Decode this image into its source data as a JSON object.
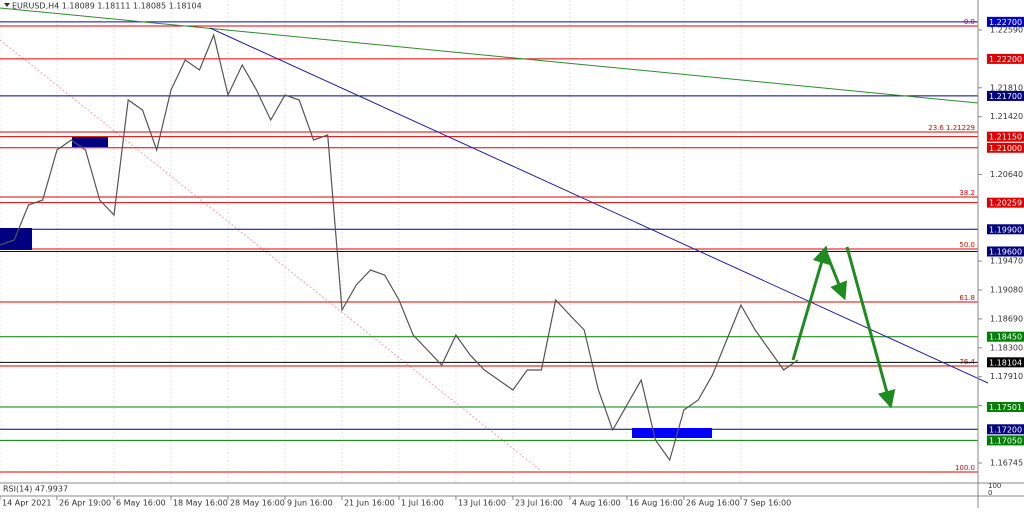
{
  "chart_data": {
    "type": "line",
    "title": "EURUSD,H4 1.18089 1.18111 1.18085 1.18104",
    "ylim": [
      1.16475,
      1.22995
    ],
    "yticks": [
      {
        "value": 1.2259,
        "label": "1.22590"
      },
      {
        "value": 1.2181,
        "label": "1.21810"
      },
      {
        "value": 1.2142,
        "label": "1.21420"
      },
      {
        "value": 1.2064,
        "label": "1.20640"
      },
      {
        "value": 1.1947,
        "label": "1.19470"
      },
      {
        "value": 1.1908,
        "label": "1.19080"
      },
      {
        "value": 1.1869,
        "label": "1.18690"
      },
      {
        "value": 1.183,
        "label": "1.18300"
      },
      {
        "value": 1.1791,
        "label": "1.17910"
      },
      {
        "value": 1.1752,
        "label": "1.17520"
      },
      {
        "value": 1.16745,
        "label": "1.16745"
      }
    ],
    "xlim": [
      0,
      17.16
    ],
    "xticks": [
      {
        "value": 0,
        "label": "14 Apr 2021"
      },
      {
        "value": 1,
        "label": "26 Apr 19:00"
      },
      {
        "value": 2,
        "label": "6 May 16:00"
      },
      {
        "value": 3,
        "label": "18 May 16:00"
      },
      {
        "value": 4,
        "label": "28 May 16:00"
      },
      {
        "value": 5,
        "label": "9 Jun 16:00"
      },
      {
        "value": 6,
        "label": "21 Jun 16:00"
      },
      {
        "value": 7,
        "label": "1 Jul 16:00"
      },
      {
        "value": 8,
        "label": "13 Jul 16:00"
      },
      {
        "value": 9,
        "label": "23 Jul 16:00"
      },
      {
        "value": 10,
        "label": "4 Aug 16:00"
      },
      {
        "value": 11,
        "label": "16 Aug 16:00"
      },
      {
        "value": 12,
        "label": "26 Aug 16:00"
      },
      {
        "value": 13,
        "label": "7 Sep 16:00"
      }
    ],
    "grid": true,
    "series": [
      {
        "color": "#555555",
        "x": [
          0,
          0.25,
          0.5,
          0.75,
          1,
          1.25,
          1.5,
          1.75,
          2,
          2.25,
          2.5,
          2.75,
          3,
          3.25,
          3.5,
          3.75,
          4,
          4.25,
          4.5,
          4.75,
          5,
          5.25,
          5.5,
          5.75,
          6,
          6.25,
          6.5,
          6.75,
          7,
          7.25,
          7.5,
          7.75,
          8,
          8.25,
          8.5,
          8.75,
          9,
          9.25,
          9.5,
          9.75,
          10,
          10.25,
          10.5,
          10.75,
          11,
          11.25,
          11.5,
          11.75,
          12,
          12.25,
          12.5,
          12.75,
          13,
          13.25,
          13.5,
          13.75,
          14
        ],
        "values": [
          1.19688,
          1.19755,
          1.20228,
          1.20295,
          1.2097,
          1.21105,
          1.2097,
          1.20295,
          1.20093,
          1.21645,
          1.2151,
          1.2097,
          1.2178,
          1.22185,
          1.2205,
          1.22522,
          1.21712,
          1.22117,
          1.2178,
          1.21375,
          1.21712,
          1.21645,
          1.21105,
          1.21172,
          1.1881,
          1.19147,
          1.1935,
          1.19282,
          1.18945,
          1.18472,
          1.1827,
          1.18067,
          1.18472,
          1.18202,
          1.18,
          1.17865,
          1.1773,
          1.18,
          1.18,
          1.18945,
          1.18742,
          1.1854,
          1.1773,
          1.1719,
          1.17527,
          1.17865,
          1.17055,
          1.16785,
          1.1746,
          1.17595,
          1.17932,
          1.18405,
          1.18877,
          1.1854,
          1.1827,
          1.18,
          1.18135
        ]
      }
    ],
    "levels": [
      {
        "value": 1.227,
        "label": "1.22700",
        "color": "#0000cd"
      },
      {
        "value": 1.222,
        "label": "1.22200",
        "color": "#e00000"
      },
      {
        "value": 1.217,
        "label": "1.21700",
        "color": "#000080"
      },
      {
        "value": 1.2115,
        "label": "1.21150",
        "color": "#e00000"
      },
      {
        "value": 1.21,
        "label": "1.21000",
        "color": "#e00000"
      },
      {
        "value": 1.20259,
        "label": "1.20259",
        "color": "#e00000"
      },
      {
        "value": 1.199,
        "label": "1.19900",
        "color": "#000080"
      },
      {
        "value": 1.196,
        "label": "1.19600",
        "color": "#000080"
      },
      {
        "value": 1.1845,
        "label": "1.18450",
        "color": "#008000"
      },
      {
        "value": 1.18104,
        "label": "1.18104",
        "color": "#000000"
      },
      {
        "value": 1.17501,
        "label": "1.17501",
        "color": "#008000"
      },
      {
        "value": 1.172,
        "label": "1.17200",
        "color": "#000080"
      },
      {
        "value": 1.1705,
        "label": "1.17050",
        "color": "#008000"
      }
    ],
    "fib_labels": [
      "0.0",
      "23.6 1.21229",
      "38.2",
      "50.0",
      "61.8",
      "76.4",
      "100.0"
    ],
    "rsi": {
      "label": "RSI(14) 47.9937",
      "yticks": [
        100,
        0
      ]
    }
  }
}
